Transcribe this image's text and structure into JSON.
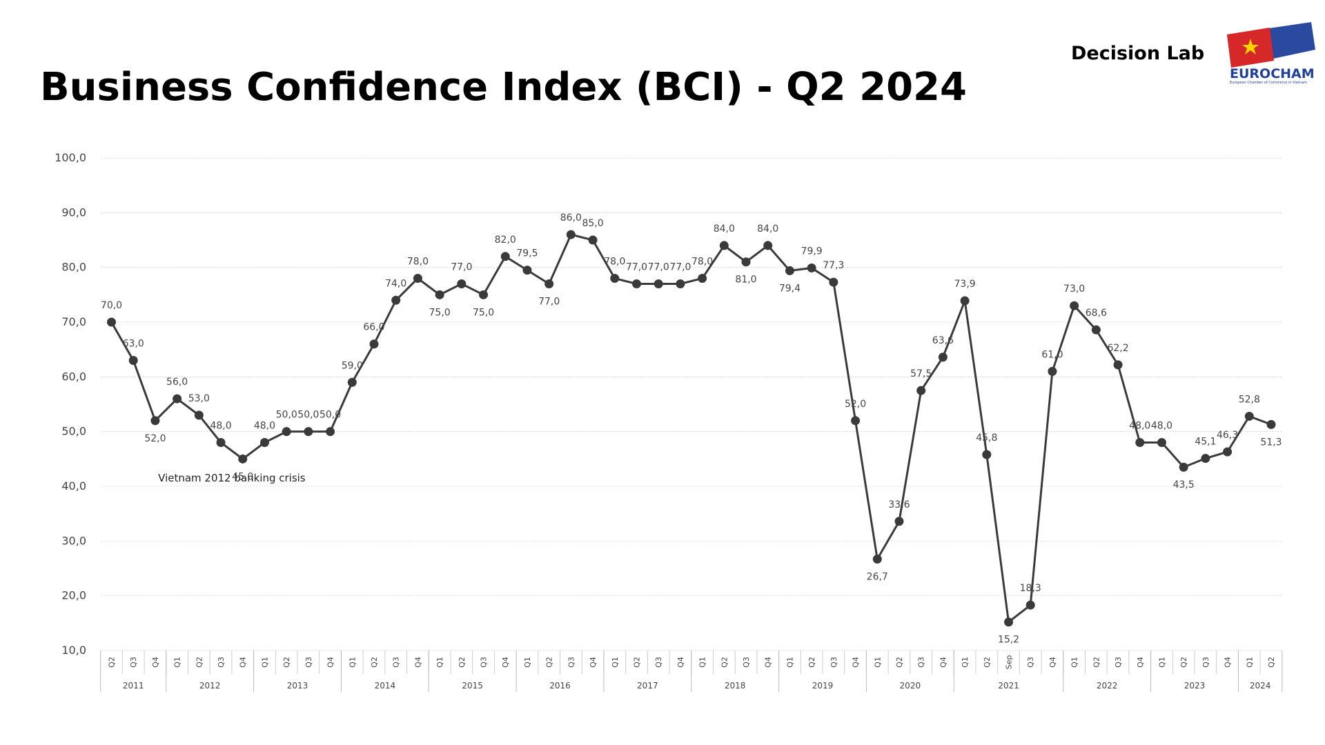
{
  "header": {
    "brand": "Decision Lab",
    "logo": "EUROCHAM",
    "logo_subtitle": "European Chamber of Commerce in Vietnam"
  },
  "chart_data": {
    "type": "line",
    "title": "Business Confidence Index (BCI) - Q2 2024",
    "categories": [
      "Q2",
      "Q3",
      "Q4",
      "Q1",
      "Q2",
      "Q3",
      "Q4",
      "Q1",
      "Q2",
      "Q3",
      "Q4",
      "Q1",
      "Q2",
      "Q3",
      "Q4",
      "Q1",
      "Q2",
      "Q3",
      "Q4",
      "Q1",
      "Q2",
      "Q3",
      "Q4",
      "Q1",
      "Q2",
      "Q3",
      "Q4",
      "Q1",
      "Q2",
      "Q3",
      "Q4",
      "Q1",
      "Q2",
      "Q3",
      "Q4",
      "Q1",
      "Q2",
      "Q3",
      "Q4",
      "Q1",
      "Q2",
      "Sep",
      "Q3",
      "Q4",
      "Q1",
      "Q2",
      "Q3",
      "Q4",
      "Q1",
      "Q2",
      "Q3",
      "Q4",
      "Q1",
      "Q2"
    ],
    "groups": [
      {
        "label": "2011",
        "count": 3
      },
      {
        "label": "2012",
        "count": 4
      },
      {
        "label": "2013",
        "count": 4
      },
      {
        "label": "2014",
        "count": 4
      },
      {
        "label": "2015",
        "count": 4
      },
      {
        "label": "2016",
        "count": 4
      },
      {
        "label": "2017",
        "count": 4
      },
      {
        "label": "2018",
        "count": 4
      },
      {
        "label": "2019",
        "count": 4
      },
      {
        "label": "2020",
        "count": 4
      },
      {
        "label": "2021",
        "count": 5
      },
      {
        "label": "2022",
        "count": 4
      },
      {
        "label": "2023",
        "count": 4
      },
      {
        "label": "2024",
        "count": 2
      }
    ],
    "series": [
      {
        "name": "BCI",
        "color": "#3a3a3a",
        "values": [
          70,
          63,
          52,
          56,
          53,
          48,
          45,
          48,
          50,
          50,
          50,
          59,
          66,
          74,
          78,
          75,
          77,
          75,
          82,
          79.5,
          77,
          86,
          85,
          78,
          77,
          77,
          77,
          78,
          84,
          81,
          84,
          79.4,
          79.9,
          77.3,
          52,
          26.7,
          33.6,
          57.5,
          63.6,
          73.9,
          45.8,
          15.2,
          18.3,
          61,
          73,
          68.6,
          62.2,
          48,
          48,
          43.5,
          45.1,
          46.3,
          52.8,
          51.3
        ],
        "value_labels": [
          "70,0",
          "63,0",
          "52,0",
          "56,0",
          "53,0",
          "48,0",
          "45,0",
          "48,0",
          "50,0",
          "50,0",
          "50,0",
          "59,0",
          "66,0",
          "74,0",
          "78,0",
          "75,0",
          "77,0",
          "75,0",
          "82,0",
          "79,5",
          "77,0",
          "86,0",
          "85,0",
          "78,0",
          "77,0",
          "77,0",
          "77,0",
          "78,0",
          "84,0",
          "81,0",
          "84,0",
          "79,4",
          "79,9",
          "77,3",
          "52,0",
          "26,7",
          "33,6",
          "57,5",
          "63,6",
          "73,9",
          "45,8",
          "15,2",
          "18,3",
          "61,0",
          "73,0",
          "68,6",
          "62,2",
          "48,0",
          "48,0",
          "43,5",
          "45,1",
          "46,3",
          "52,8",
          "51,3"
        ]
      }
    ],
    "ylim": [
      10,
      100
    ],
    "yticks": [
      {
        "value": 10,
        "label": "10,0"
      },
      {
        "value": 20,
        "label": "20,0"
      },
      {
        "value": 30,
        "label": "30,0"
      },
      {
        "value": 40,
        "label": "40,0"
      },
      {
        "value": 50,
        "label": "50,0"
      },
      {
        "value": 60,
        "label": "60,0"
      },
      {
        "value": 70,
        "label": "70,0"
      },
      {
        "value": 80,
        "label": "80,0"
      },
      {
        "value": 90,
        "label": "90,0"
      },
      {
        "value": 100,
        "label": "100,0"
      }
    ],
    "grid": true,
    "annotations": [
      {
        "text": "Vietnam 2012 banking crisis",
        "category_index": 5
      }
    ]
  }
}
